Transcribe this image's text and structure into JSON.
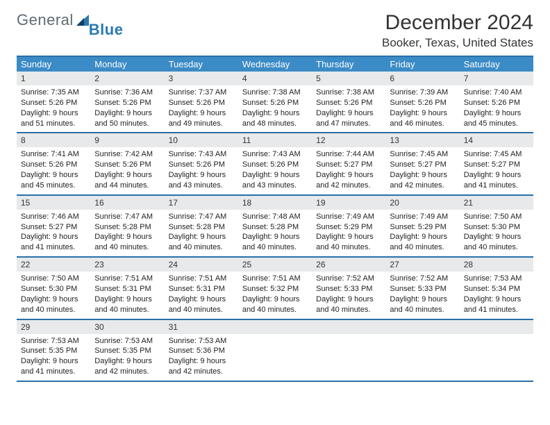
{
  "brand": {
    "part1": "General",
    "part2": "Blue"
  },
  "title": "December 2024",
  "location": "Booker, Texas, United States",
  "colors": {
    "header_bg": "#3b8bc6",
    "rule": "#2a6fa8",
    "daynum_bg": "#e8e9ea",
    "text": "#222222"
  },
  "typography": {
    "title_fontsize_pt": 22,
    "subtitle_fontsize_pt": 13,
    "body_fontsize_pt": 8,
    "font_family": "Arial"
  },
  "days_of_week": [
    "Sunday",
    "Monday",
    "Tuesday",
    "Wednesday",
    "Thursday",
    "Friday",
    "Saturday"
  ],
  "weeks": [
    [
      {
        "n": "1",
        "sunrise": "Sunrise: 7:35 AM",
        "sunset": "Sunset: 5:26 PM",
        "d1": "Daylight: 9 hours",
        "d2": "and 51 minutes."
      },
      {
        "n": "2",
        "sunrise": "Sunrise: 7:36 AM",
        "sunset": "Sunset: 5:26 PM",
        "d1": "Daylight: 9 hours",
        "d2": "and 50 minutes."
      },
      {
        "n": "3",
        "sunrise": "Sunrise: 7:37 AM",
        "sunset": "Sunset: 5:26 PM",
        "d1": "Daylight: 9 hours",
        "d2": "and 49 minutes."
      },
      {
        "n": "4",
        "sunrise": "Sunrise: 7:38 AM",
        "sunset": "Sunset: 5:26 PM",
        "d1": "Daylight: 9 hours",
        "d2": "and 48 minutes."
      },
      {
        "n": "5",
        "sunrise": "Sunrise: 7:38 AM",
        "sunset": "Sunset: 5:26 PM",
        "d1": "Daylight: 9 hours",
        "d2": "and 47 minutes."
      },
      {
        "n": "6",
        "sunrise": "Sunrise: 7:39 AM",
        "sunset": "Sunset: 5:26 PM",
        "d1": "Daylight: 9 hours",
        "d2": "and 46 minutes."
      },
      {
        "n": "7",
        "sunrise": "Sunrise: 7:40 AM",
        "sunset": "Sunset: 5:26 PM",
        "d1": "Daylight: 9 hours",
        "d2": "and 45 minutes."
      }
    ],
    [
      {
        "n": "8",
        "sunrise": "Sunrise: 7:41 AM",
        "sunset": "Sunset: 5:26 PM",
        "d1": "Daylight: 9 hours",
        "d2": "and 45 minutes."
      },
      {
        "n": "9",
        "sunrise": "Sunrise: 7:42 AM",
        "sunset": "Sunset: 5:26 PM",
        "d1": "Daylight: 9 hours",
        "d2": "and 44 minutes."
      },
      {
        "n": "10",
        "sunrise": "Sunrise: 7:43 AM",
        "sunset": "Sunset: 5:26 PM",
        "d1": "Daylight: 9 hours",
        "d2": "and 43 minutes."
      },
      {
        "n": "11",
        "sunrise": "Sunrise: 7:43 AM",
        "sunset": "Sunset: 5:26 PM",
        "d1": "Daylight: 9 hours",
        "d2": "and 43 minutes."
      },
      {
        "n": "12",
        "sunrise": "Sunrise: 7:44 AM",
        "sunset": "Sunset: 5:27 PM",
        "d1": "Daylight: 9 hours",
        "d2": "and 42 minutes."
      },
      {
        "n": "13",
        "sunrise": "Sunrise: 7:45 AM",
        "sunset": "Sunset: 5:27 PM",
        "d1": "Daylight: 9 hours",
        "d2": "and 42 minutes."
      },
      {
        "n": "14",
        "sunrise": "Sunrise: 7:45 AM",
        "sunset": "Sunset: 5:27 PM",
        "d1": "Daylight: 9 hours",
        "d2": "and 41 minutes."
      }
    ],
    [
      {
        "n": "15",
        "sunrise": "Sunrise: 7:46 AM",
        "sunset": "Sunset: 5:27 PM",
        "d1": "Daylight: 9 hours",
        "d2": "and 41 minutes."
      },
      {
        "n": "16",
        "sunrise": "Sunrise: 7:47 AM",
        "sunset": "Sunset: 5:28 PM",
        "d1": "Daylight: 9 hours",
        "d2": "and 40 minutes."
      },
      {
        "n": "17",
        "sunrise": "Sunrise: 7:47 AM",
        "sunset": "Sunset: 5:28 PM",
        "d1": "Daylight: 9 hours",
        "d2": "and 40 minutes."
      },
      {
        "n": "18",
        "sunrise": "Sunrise: 7:48 AM",
        "sunset": "Sunset: 5:28 PM",
        "d1": "Daylight: 9 hours",
        "d2": "and 40 minutes."
      },
      {
        "n": "19",
        "sunrise": "Sunrise: 7:49 AM",
        "sunset": "Sunset: 5:29 PM",
        "d1": "Daylight: 9 hours",
        "d2": "and 40 minutes."
      },
      {
        "n": "20",
        "sunrise": "Sunrise: 7:49 AM",
        "sunset": "Sunset: 5:29 PM",
        "d1": "Daylight: 9 hours",
        "d2": "and 40 minutes."
      },
      {
        "n": "21",
        "sunrise": "Sunrise: 7:50 AM",
        "sunset": "Sunset: 5:30 PM",
        "d1": "Daylight: 9 hours",
        "d2": "and 40 minutes."
      }
    ],
    [
      {
        "n": "22",
        "sunrise": "Sunrise: 7:50 AM",
        "sunset": "Sunset: 5:30 PM",
        "d1": "Daylight: 9 hours",
        "d2": "and 40 minutes."
      },
      {
        "n": "23",
        "sunrise": "Sunrise: 7:51 AM",
        "sunset": "Sunset: 5:31 PM",
        "d1": "Daylight: 9 hours",
        "d2": "and 40 minutes."
      },
      {
        "n": "24",
        "sunrise": "Sunrise: 7:51 AM",
        "sunset": "Sunset: 5:31 PM",
        "d1": "Daylight: 9 hours",
        "d2": "and 40 minutes."
      },
      {
        "n": "25",
        "sunrise": "Sunrise: 7:51 AM",
        "sunset": "Sunset: 5:32 PM",
        "d1": "Daylight: 9 hours",
        "d2": "and 40 minutes."
      },
      {
        "n": "26",
        "sunrise": "Sunrise: 7:52 AM",
        "sunset": "Sunset: 5:33 PM",
        "d1": "Daylight: 9 hours",
        "d2": "and 40 minutes."
      },
      {
        "n": "27",
        "sunrise": "Sunrise: 7:52 AM",
        "sunset": "Sunset: 5:33 PM",
        "d1": "Daylight: 9 hours",
        "d2": "and 40 minutes."
      },
      {
        "n": "28",
        "sunrise": "Sunrise: 7:53 AM",
        "sunset": "Sunset: 5:34 PM",
        "d1": "Daylight: 9 hours",
        "d2": "and 41 minutes."
      }
    ],
    [
      {
        "n": "29",
        "sunrise": "Sunrise: 7:53 AM",
        "sunset": "Sunset: 5:35 PM",
        "d1": "Daylight: 9 hours",
        "d2": "and 41 minutes."
      },
      {
        "n": "30",
        "sunrise": "Sunrise: 7:53 AM",
        "sunset": "Sunset: 5:35 PM",
        "d1": "Daylight: 9 hours",
        "d2": "and 42 minutes."
      },
      {
        "n": "31",
        "sunrise": "Sunrise: 7:53 AM",
        "sunset": "Sunset: 5:36 PM",
        "d1": "Daylight: 9 hours",
        "d2": "and 42 minutes."
      },
      {
        "empty": true
      },
      {
        "empty": true
      },
      {
        "empty": true
      },
      {
        "empty": true
      }
    ]
  ]
}
